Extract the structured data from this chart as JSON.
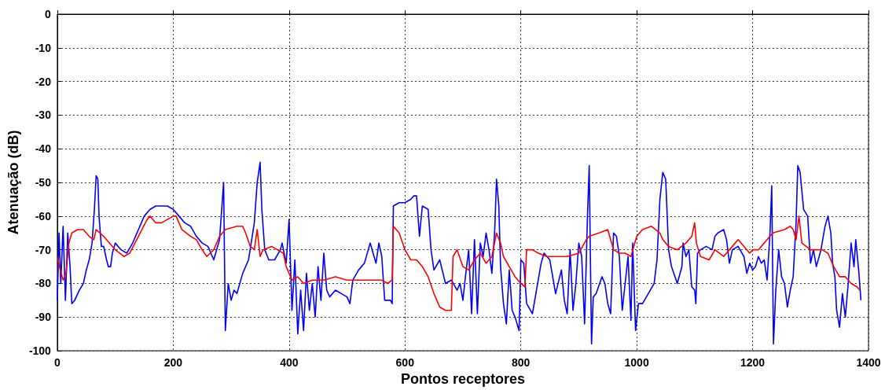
{
  "chart_data": {
    "type": "line",
    "xlabel": "Pontos receptores",
    "ylabel": "Atenuação (dB)",
    "xlim": [
      0,
      1400
    ],
    "xticks": [
      0,
      200,
      400,
      600,
      800,
      1000,
      1200,
      1400
    ],
    "ylim": [
      -100,
      0
    ],
    "yticks": [
      -100,
      -90,
      -80,
      -70,
      -60,
      -50,
      -40,
      -30,
      -20,
      -10,
      0
    ],
    "grid": true,
    "marker": "none",
    "line_style": "solid",
    "series": [
      {
        "color": "#0000ff",
        "x": [
          0,
          3,
          6,
          10,
          14,
          18,
          22,
          25,
          30,
          38,
          45,
          50,
          55,
          60,
          64,
          67,
          70,
          72,
          76,
          80,
          85,
          88,
          92,
          95,
          100,
          110,
          120,
          130,
          140,
          150,
          160,
          170,
          180,
          190,
          200,
          210,
          220,
          230,
          240,
          250,
          260,
          270,
          280,
          287,
          290,
          295,
          300,
          305,
          310,
          320,
          330,
          340,
          345,
          350,
          353,
          358,
          365,
          375,
          385,
          388,
          395,
          400,
          405,
          410,
          415,
          420,
          425,
          430,
          435,
          440,
          445,
          450,
          455,
          460,
          465,
          470,
          480,
          490,
          500,
          505,
          510,
          520,
          530,
          540,
          545,
          550,
          555,
          560,
          565,
          575,
          578,
          580,
          590,
          600,
          610,
          615,
          620,
          625,
          630,
          640,
          645,
          650,
          660,
          670,
          680,
          690,
          695,
          700,
          705,
          710,
          715,
          720,
          725,
          730,
          735,
          740,
          745,
          750,
          755,
          758,
          762,
          765,
          770,
          775,
          780,
          785,
          790,
          797,
          800,
          805,
          810,
          820,
          830,
          835,
          840,
          850,
          860,
          870,
          875,
          880,
          885,
          890,
          895,
          900,
          905,
          910,
          915,
          918,
          922,
          925,
          930,
          940,
          945,
          950,
          955,
          960,
          965,
          970,
          975,
          980,
          985,
          990,
          993,
          998,
          1003,
          1010,
          1020,
          1030,
          1035,
          1040,
          1045,
          1050,
          1055,
          1060,
          1070,
          1078,
          1080,
          1085,
          1090,
          1095,
          1100,
          1102,
          1105,
          1110,
          1120,
          1130,
          1135,
          1140,
          1150,
          1155,
          1160,
          1165,
          1175,
          1185,
          1190,
          1195,
          1200,
          1205,
          1210,
          1215,
          1220,
          1225,
          1230,
          1233,
          1236,
          1240,
          1245,
          1250,
          1255,
          1260,
          1265,
          1270,
          1275,
          1278,
          1282,
          1288,
          1295,
          1300,
          1305,
          1310,
          1318,
          1325,
          1330,
          1335,
          1338,
          1342,
          1345,
          1350,
          1355,
          1360,
          1365,
          1370,
          1375,
          1378,
          1383,
          1387
        ],
        "values": [
          -85,
          -65,
          -80,
          -63,
          -85,
          -65,
          -75,
          -86,
          -85,
          -82,
          -80,
          -76,
          -73,
          -68,
          -58,
          -48,
          -49,
          -60,
          -69,
          -69,
          -73,
          -75,
          -75,
          -71,
          -68,
          -70,
          -71,
          -68,
          -64,
          -60,
          -58,
          -57,
          -57,
          -57,
          -58,
          -60,
          -62,
          -63,
          -66,
          -68,
          -69,
          -73,
          -67,
          -50,
          -94,
          -80,
          -85,
          -82,
          -83,
          -77,
          -73,
          -62,
          -50,
          -44,
          -58,
          -70,
          -73,
          -73,
          -70,
          -68,
          -74,
          -61,
          -88,
          -73,
          -95,
          -82,
          -94,
          -77,
          -88,
          -80,
          -90,
          -75,
          -85,
          -71,
          -82,
          -84,
          -82,
          -83,
          -84,
          -86,
          -79,
          -76,
          -74,
          -68,
          -71,
          -74,
          -68,
          -72,
          -85,
          -85,
          -86,
          -57,
          -56,
          -56,
          -55,
          -54,
          -54,
          -66,
          -57,
          -58,
          -70,
          -76,
          -73,
          -80,
          -79,
          -82,
          -80,
          -85,
          -77,
          -70,
          -89,
          -67,
          -89,
          -68,
          -72,
          -65,
          -70,
          -77,
          -64,
          -49,
          -57,
          -75,
          -86,
          -92,
          -76,
          -88,
          -90,
          -94,
          -73,
          -74,
          -86,
          -89,
          -79,
          -74,
          -71,
          -73,
          -83,
          -76,
          -85,
          -89,
          -70,
          -88,
          -80,
          -68,
          -72,
          -92,
          -60,
          -45,
          -98,
          -84,
          -83,
          -78,
          -80,
          -86,
          -89,
          -65,
          -66,
          -72,
          -88,
          -80,
          -72,
          -91,
          -68,
          -94,
          -86,
          -86,
          -83,
          -80,
          -73,
          -55,
          -47,
          -49,
          -70,
          -75,
          -80,
          -75,
          -68,
          -72,
          -70,
          -81,
          -82,
          -86,
          -71,
          -70,
          -69,
          -70,
          -66,
          -65,
          -64,
          -67,
          -74,
          -70,
          -69,
          -72,
          -77,
          -74,
          -76,
          -75,
          -72,
          -74,
          -73,
          -79,
          -65,
          -51,
          -98,
          -82,
          -70,
          -78,
          -80,
          -87,
          -82,
          -78,
          -62,
          -45,
          -47,
          -58,
          -60,
          -74,
          -70,
          -75,
          -70,
          -63,
          -60,
          -65,
          -74,
          -78,
          -88,
          -93,
          -83,
          -90,
          -80,
          -68,
          -75,
          -67,
          -76,
          -85
        ]
      },
      {
        "color": "#ff0000",
        "x": [
          0,
          5,
          10,
          15,
          20,
          25,
          35,
          45,
          55,
          63,
          67,
          80,
          100,
          115,
          125,
          140,
          155,
          160,
          170,
          180,
          200,
          205,
          215,
          230,
          240,
          250,
          258,
          270,
          280,
          290,
          310,
          320,
          325,
          333,
          340,
          345,
          350,
          355,
          370,
          390,
          395,
          405,
          415,
          425,
          440,
          460,
          480,
          500,
          520,
          540,
          560,
          570,
          578,
          580,
          590,
          600,
          610,
          620,
          630,
          640,
          650,
          660,
          670,
          680,
          683,
          690,
          700,
          710,
          720,
          730,
          740,
          750,
          758,
          765,
          770,
          780,
          790,
          800,
          807,
          810,
          820,
          830,
          845,
          860,
          880,
          900,
          913,
          918,
          935,
          950,
          960,
          970,
          980,
          990,
          1000,
          1010,
          1025,
          1040,
          1045,
          1055,
          1070,
          1085,
          1095,
          1100,
          1103,
          1110,
          1125,
          1135,
          1150,
          1165,
          1175,
          1195,
          1200,
          1210,
          1220,
          1225,
          1235,
          1255,
          1265,
          1270,
          1275,
          1280,
          1285,
          1300,
          1320,
          1330,
          1340,
          1350,
          1360,
          1370,
          1380,
          1385
        ],
        "values": [
          -72,
          -76,
          -79,
          -77,
          -68,
          -65,
          -64,
          -64,
          -66,
          -67,
          -64,
          -66,
          -70,
          -72,
          -71,
          -66,
          -61,
          -60,
          -62,
          -62,
          -60,
          -60,
          -64,
          -66,
          -67,
          -70,
          -72,
          -70,
          -66,
          -64,
          -63,
          -63,
          -65,
          -69,
          -70,
          -64,
          -72,
          -70,
          -69,
          -71,
          -75,
          -79,
          -78,
          -80,
          -79,
          -79,
          -78,
          -79,
          -79,
          -79,
          -79,
          -80,
          -79,
          -63,
          -65,
          -70,
          -73,
          -73,
          -75,
          -78,
          -83,
          -87,
          -88,
          -88,
          -72,
          -70,
          -75,
          -76,
          -73,
          -71,
          -74,
          -72,
          -65,
          -68,
          -72,
          -75,
          -78,
          -80,
          -81,
          -70,
          -70,
          -71,
          -72,
          -72,
          -72,
          -71,
          -67,
          -66,
          -65,
          -64,
          -70,
          -71,
          -71,
          -72,
          -66,
          -64,
          -63,
          -65,
          -67,
          -69,
          -70,
          -68,
          -66,
          -62,
          -68,
          -72,
          -73,
          -70,
          -72,
          -69,
          -67,
          -71,
          -70,
          -70,
          -68,
          -67,
          -65,
          -64,
          -63,
          -64,
          -67,
          -60,
          -68,
          -70,
          -70,
          -71,
          -75,
          -78,
          -78,
          -80,
          -81,
          -82
        ]
      }
    ]
  }
}
